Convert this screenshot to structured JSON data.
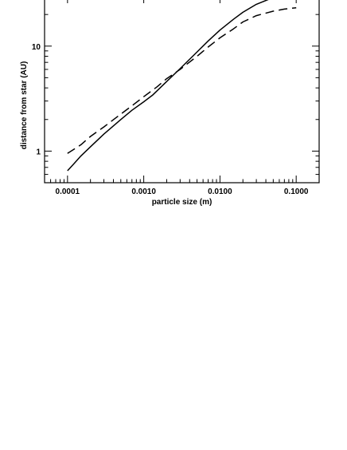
{
  "chart_data": {
    "type": "line",
    "xlabel": "particle size (m)",
    "ylabel": "distance from star (AU)",
    "xscale": "log",
    "yscale": "log",
    "xlim": [
      5e-05,
      0.2
    ],
    "ylim": [
      0.5,
      30
    ],
    "x_ticks": [
      "0.0001",
      "0.0010",
      "0.0100",
      "0.1000"
    ],
    "y_ticks": [
      "1",
      "10"
    ],
    "grid": false,
    "legend": "none",
    "series": [
      {
        "style": "solid",
        "color": "#000000",
        "x": [
          0.0001,
          0.00012,
          0.00015,
          0.0002,
          0.0003,
          0.0005,
          0.0007,
          0.001,
          0.0013,
          0.002,
          0.003,
          0.005,
          0.007,
          0.01,
          0.015,
          0.02,
          0.03,
          0.05,
          0.07
        ],
        "y": [
          0.65,
          0.75,
          0.9,
          1.1,
          1.45,
          2.0,
          2.45,
          2.95,
          3.4,
          4.6,
          6.1,
          8.8,
          11.2,
          14.2,
          18.0,
          21.0,
          25.0,
          29.0,
          31.0
        ]
      },
      {
        "style": "dashed",
        "color": "#000000",
        "x": [
          0.0001,
          0.00015,
          0.0002,
          0.0003,
          0.0005,
          0.0007,
          0.001,
          0.0015,
          0.002,
          0.003,
          0.005,
          0.007,
          0.01,
          0.015,
          0.02,
          0.03,
          0.05,
          0.07,
          0.1
        ],
        "y": [
          0.95,
          1.15,
          1.38,
          1.7,
          2.25,
          2.7,
          3.3,
          4.1,
          4.9,
          6.0,
          8.0,
          9.8,
          12.0,
          14.6,
          17.0,
          19.5,
          21.5,
          22.5,
          23.2
        ]
      }
    ]
  }
}
